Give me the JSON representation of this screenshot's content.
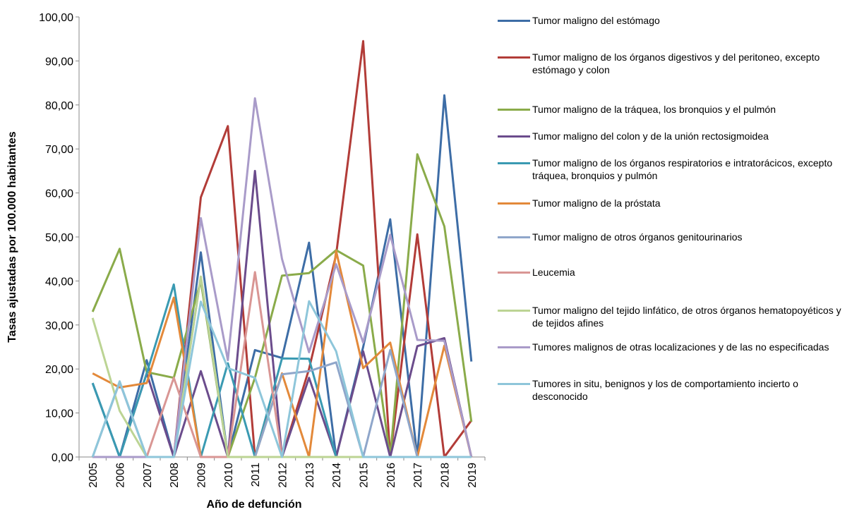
{
  "chart_data": {
    "type": "line",
    "x_label": "Año de defunción",
    "y_label": "Tasas ajustadas por 100.000 habitantes",
    "categories": [
      "2005",
      "2006",
      "2007",
      "2008",
      "2009",
      "2010",
      "2011",
      "2012",
      "2013",
      "2014",
      "2015",
      "2016",
      "2017",
      "2018",
      "2019"
    ],
    "ylim": [
      0,
      100
    ],
    "yticks": [
      {
        "value": 0,
        "label": "0,00"
      },
      {
        "value": 10,
        "label": "10,00"
      },
      {
        "value": 20,
        "label": "20,00"
      },
      {
        "value": 30,
        "label": "30,00"
      },
      {
        "value": 40,
        "label": "40,00"
      },
      {
        "value": 50,
        "label": "50,00"
      },
      {
        "value": 60,
        "label": "60,00"
      },
      {
        "value": 70,
        "label": "70,00"
      },
      {
        "value": 80,
        "label": "80,00"
      },
      {
        "value": 90,
        "label": "90,00"
      },
      {
        "value": 100,
        "label": "100,00"
      }
    ],
    "grid": false,
    "legend": "right",
    "series": [
      {
        "name": "Tumor maligno del estómago",
        "color": "#3d6da6",
        "values": [
          16.8,
          0,
          22,
          0,
          46.5,
          0,
          24.3,
          22.5,
          48.7,
          0,
          25,
          54,
          0,
          82.2,
          21.7
        ]
      },
      {
        "name": "Tumor maligno de los órganos digestivos y del peritoneo, excepto estómago y colon",
        "color": "#b23c38",
        "values": [
          0,
          0,
          0,
          0,
          59,
          75.2,
          0,
          0,
          20,
          46,
          94.5,
          0,
          50.6,
          0,
          8.3
        ]
      },
      {
        "name": "Tumor maligno de la tráquea, los bronquios y el pulmón",
        "color": "#8aab4a",
        "values": [
          33,
          47.3,
          19.3,
          18,
          40,
          0,
          18,
          41.2,
          41.8,
          47,
          43.5,
          0,
          68.8,
          52.4,
          8
        ]
      },
      {
        "name": "Tumor maligno del colon y de la unión rectosigmoidea",
        "color": "#6b4c8c",
        "values": [
          0,
          0,
          19,
          0,
          19.5,
          0,
          65,
          0,
          18,
          0,
          24,
          0,
          25.2,
          27,
          0
        ]
      },
      {
        "name": "Tumor maligno de los órganos respiratorios e intratorácicos, excepto tráquea, bronquios y pulmón",
        "color": "#3a9ab2",
        "values": [
          16.8,
          0,
          19,
          39.2,
          0,
          21.3,
          0,
          22.4,
          22.3,
          0,
          0,
          0,
          0,
          0,
          0
        ]
      },
      {
        "name": "Tumor maligno de la próstata",
        "color": "#e3893a",
        "values": [
          19,
          15.8,
          16.8,
          36.2,
          0,
          0,
          0,
          19,
          0,
          46.8,
          20.2,
          26,
          0,
          25.3,
          0
        ]
      },
      {
        "name": "Tumor maligno de otros órganos genitourinarios",
        "color": "#8fa6ca",
        "values": [
          0,
          17,
          0,
          0,
          41,
          0,
          0,
          18.8,
          19.5,
          21.5,
          0,
          24.3,
          0,
          0,
          0
        ]
      },
      {
        "name": "Leucemia",
        "color": "#d99694",
        "values": [
          0,
          0,
          0,
          18,
          0,
          0,
          42,
          0,
          0,
          0,
          0,
          0,
          0,
          0,
          0
        ]
      },
      {
        "name": "Tumor maligno del tejido linfático, de otros órganos hematopoyéticos y de tejidos afines",
        "color": "#bcd494",
        "values": [
          31.6,
          10.5,
          0,
          0,
          41,
          0,
          0,
          0,
          0,
          0,
          0,
          0,
          0,
          0,
          0
        ]
      },
      {
        "name": "Tumores malignos de otras localizaciones y de las no especificadas",
        "color": "#a99bc9",
        "values": [
          0,
          0,
          0,
          0,
          54.3,
          22,
          81.5,
          45,
          23.8,
          43.8,
          26,
          50.5,
          26.6,
          26.4,
          0
        ]
      },
      {
        "name": "Tumores in situ, benignos y los de comportamiento incierto o desconocido",
        "color": "#8ec6da",
        "values": [
          0,
          17.2,
          0,
          0,
          35.3,
          20.2,
          18,
          0,
          35.4,
          24,
          0,
          0,
          0,
          0,
          0
        ]
      }
    ]
  }
}
